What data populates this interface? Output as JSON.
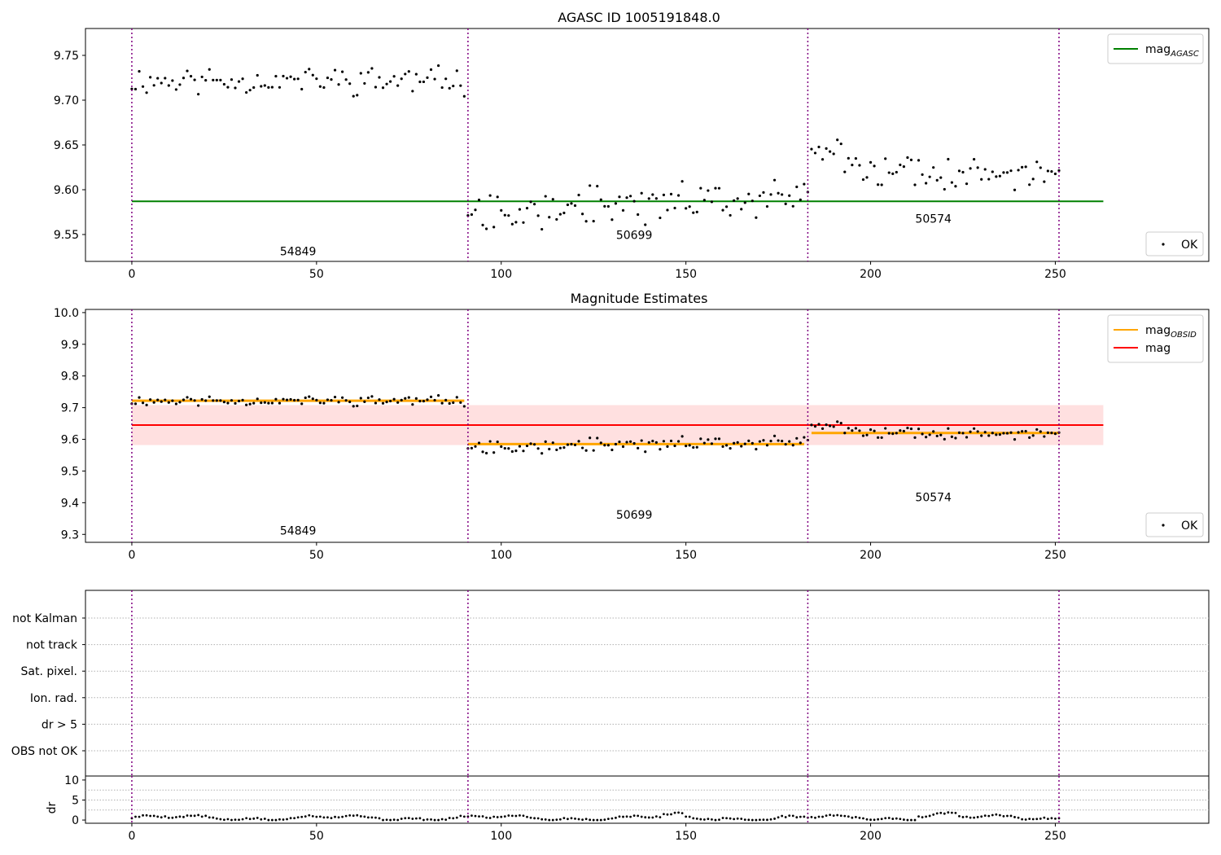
{
  "figure": {
    "background": "#ffffff",
    "colors": {
      "agasc": "#008000",
      "obsid": "#ffa500",
      "mag": "#ff0000",
      "band": "#ffcccc",
      "divider": "#800080",
      "points": "#000000",
      "grid": "#b0b0b0"
    }
  },
  "chart_data": [
    {
      "id": "top",
      "type": "scatter",
      "title": "AGASC ID 1005191848.0",
      "xlim": [
        -12.55,
        291.55
      ],
      "ylim": [
        9.52,
        9.78
      ],
      "xticks": [
        0,
        50,
        100,
        150,
        200,
        250
      ],
      "yticks": [
        9.55,
        9.6,
        9.65,
        9.7,
        9.75
      ],
      "ytick_format": 2,
      "legend_main": {
        "position": "top-right",
        "entries": [
          {
            "kind": "line",
            "label": "mag",
            "sub": "AGASC",
            "color": "#008000"
          }
        ]
      },
      "legend_ok": {
        "position": "bottom-right",
        "entries": [
          {
            "kind": "dot",
            "label": "OK",
            "color": "#000000"
          }
        ]
      },
      "obsid_labels": [
        {
          "text": "54849",
          "x": 45,
          "y": 9.527
        },
        {
          "text": "50699",
          "x": 136,
          "y": 9.545
        },
        {
          "text": "50574",
          "x": 217,
          "y": 9.563
        }
      ],
      "lines": [
        {
          "label": "mag AGASC",
          "x": [
            0,
            263
          ],
          "y": [
            9.587,
            9.587
          ],
          "color": "#008000"
        }
      ],
      "series": [
        {
          "name": "OK",
          "segments": [
            {
              "start": 0,
              "end": 90,
              "mean": 9.722,
              "amp": 0.012,
              "seed": 11
            },
            {
              "start": 91,
              "end": 183,
              "mean": 9.585,
              "amp": 0.016,
              "seed": 27,
              "trend": 0.01
            },
            {
              "start": 184,
              "end": 251,
              "mean": 9.617,
              "amp": 0.014,
              "seed": 39,
              "bump": 0.03
            }
          ]
        }
      ],
      "dividers": [
        0,
        91,
        183,
        251
      ]
    },
    {
      "id": "mid",
      "type": "scatter",
      "title": "Magnitude Estimates",
      "xlim": [
        -12.55,
        291.55
      ],
      "ylim": [
        9.275,
        10.01
      ],
      "xticks": [
        0,
        50,
        100,
        150,
        200,
        250
      ],
      "yticks": [
        9.3,
        9.4,
        9.5,
        9.6,
        9.7,
        9.8,
        9.9,
        10.0
      ],
      "ytick_format": 1,
      "legend_main": {
        "position": "top-right",
        "entries": [
          {
            "kind": "line",
            "label": "mag",
            "sub": "OBSID",
            "color": "#ffa500"
          },
          {
            "kind": "line",
            "label": "mag",
            "sub": "",
            "color": "#ff0000"
          }
        ]
      },
      "legend_ok": {
        "position": "bottom-right",
        "entries": [
          {
            "kind": "dot",
            "label": "OK",
            "color": "#000000"
          }
        ]
      },
      "obsid_labels": [
        {
          "text": "54849",
          "x": 45,
          "y": 9.3
        },
        {
          "text": "50699",
          "x": 136,
          "y": 9.35
        },
        {
          "text": "50574",
          "x": 217,
          "y": 9.405
        }
      ],
      "band": {
        "x": [
          0,
          263
        ],
        "y": [
          9.582,
          9.708
        ],
        "color": "#ffcccc"
      },
      "lines": [
        {
          "label": "mag",
          "x": [
            0,
            263
          ],
          "y": [
            9.645,
            9.645
          ],
          "color": "#ff0000"
        },
        {
          "label": "mag OBSID",
          "x": [
            0,
            90
          ],
          "y": [
            9.722,
            9.722
          ],
          "color": "#ffa500"
        },
        {
          "label": "mag OBSID",
          "x": [
            91,
            182
          ],
          "y": [
            9.585,
            9.585
          ],
          "color": "#ffa500"
        },
        {
          "label": "mag OBSID",
          "x": [
            184,
            251
          ],
          "y": [
            9.62,
            9.62
          ],
          "color": "#ffa500"
        }
      ],
      "series": [
        {
          "name": "OK",
          "segments": [
            {
              "start": 0,
              "end": 90,
              "mean": 9.722,
              "amp": 0.012,
              "seed": 11
            },
            {
              "start": 91,
              "end": 183,
              "mean": 9.585,
              "amp": 0.016,
              "seed": 27,
              "trend": 0.01
            },
            {
              "start": 184,
              "end": 251,
              "mean": 9.617,
              "amp": 0.014,
              "seed": 39,
              "bump": 0.03
            }
          ]
        }
      ],
      "dividers": [
        0,
        91,
        183,
        251
      ]
    },
    {
      "id": "flags",
      "type": "scatter",
      "xlim": [
        -12.55,
        291.55
      ],
      "categories": [
        "not Kalman",
        "not track",
        "Sat. pixel.",
        "Ion. rad.",
        "dr > 5",
        "OBS not OK"
      ],
      "values": [],
      "dividers": [
        0,
        91,
        183,
        251
      ]
    },
    {
      "id": "dr",
      "type": "scatter",
      "ylabel": "dr",
      "xlim": [
        -12.55,
        291.55
      ],
      "ylim": [
        -0.8,
        11
      ],
      "xticks": [
        0,
        50,
        100,
        150,
        200,
        250
      ],
      "yticks": [
        0,
        5,
        10
      ],
      "grid_y": [
        2.5,
        5,
        7.5
      ],
      "series": [
        {
          "name": "dr",
          "n": 252,
          "base": 0.55
        }
      ],
      "dividers": [
        0,
        91,
        183,
        251
      ]
    }
  ]
}
